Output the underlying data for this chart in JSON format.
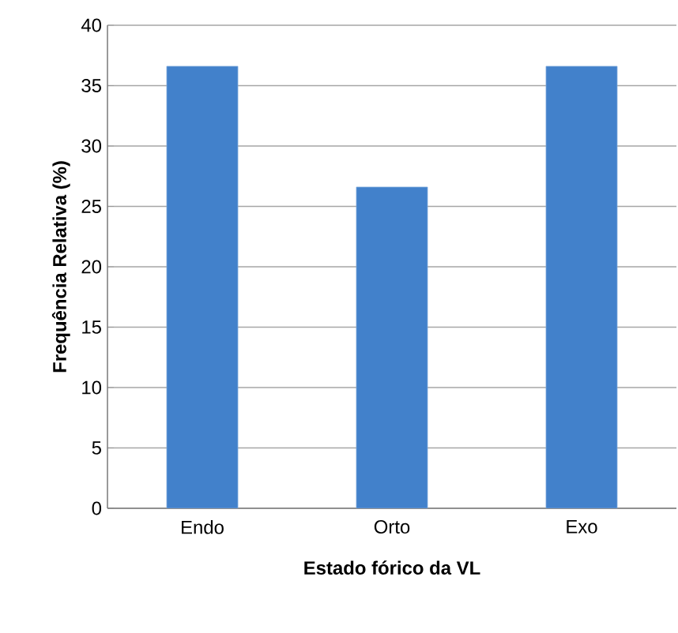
{
  "chart_data": {
    "type": "bar",
    "xlabel": "Estado fórico da VL",
    "ylabel": "Frequência Relativa  (%)",
    "categories": [
      "Endo",
      "Orto",
      "Exo"
    ],
    "values": [
      36.6,
      26.6,
      36.6
    ],
    "color": "#4281cb",
    "ylim": [
      0,
      40
    ],
    "yticks": [
      0,
      5,
      10,
      15,
      20,
      25,
      30,
      35,
      40
    ],
    "grid": "y"
  }
}
